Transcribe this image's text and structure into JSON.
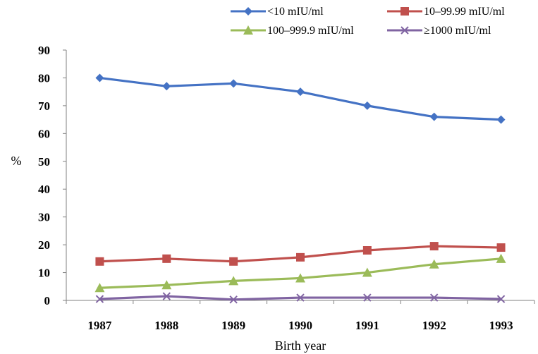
{
  "chart_data": {
    "type": "line",
    "title": "",
    "xlabel": "Birth year",
    "ylabel": "%",
    "categories": [
      "1987",
      "1988",
      "1989",
      "1990",
      "1991",
      "1992",
      "1993"
    ],
    "ylim": [
      0,
      90
    ],
    "yticks": [
      "0",
      "10",
      "20",
      "30",
      "40",
      "50",
      "60",
      "70",
      "80",
      "90"
    ],
    "grid": false,
    "legend_position": "top",
    "series": [
      {
        "name": "<10 mIU/ml",
        "values": [
          80,
          77,
          78,
          75,
          70,
          66,
          65
        ],
        "color": "#4472C4",
        "marker": "diamond"
      },
      {
        "name": "10–99.99 mIU/ml",
        "values": [
          14,
          15,
          14,
          15.5,
          18,
          19.5,
          19
        ],
        "color": "#C0504D",
        "marker": "square"
      },
      {
        "name": "100–999.9 mIU/ml",
        "values": [
          4.5,
          5.5,
          7,
          8,
          10,
          13,
          15
        ],
        "color": "#9BBB59",
        "marker": "triangle"
      },
      {
        "name": "≥1000 mIU/ml",
        "values": [
          0.5,
          1.5,
          0.3,
          1,
          1,
          1,
          0.5
        ],
        "color": "#8064A2",
        "marker": "x"
      }
    ]
  }
}
